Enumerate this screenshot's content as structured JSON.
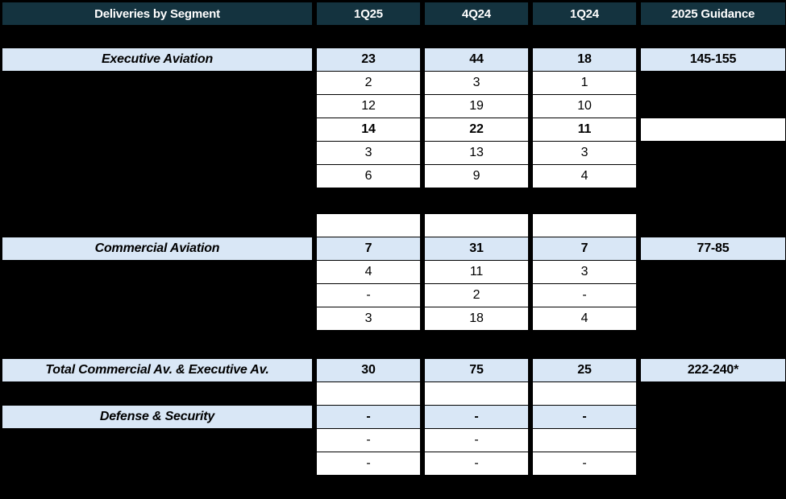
{
  "colors": {
    "page-bg": "#000000",
    "header-bg": "#14333f",
    "header-text": "#ffffff",
    "segment-row-bg": "#d9e7f6",
    "cell-bg": "#ffffff",
    "text": "#000000"
  },
  "chart_data": {
    "type": "table",
    "title": "Deliveries by Segment",
    "columns": [
      "Deliveries by Segment",
      "1Q25",
      "4Q24",
      "1Q24",
      "2025 Guidance"
    ],
    "rows": [
      [
        "Executive Aviation",
        "23",
        "44",
        "18",
        "145-155"
      ],
      [
        "",
        "2",
        "3",
        "1",
        ""
      ],
      [
        "",
        "12",
        "19",
        "10",
        ""
      ],
      [
        "",
        "14",
        "22",
        "11",
        ""
      ],
      [
        "",
        "3",
        "13",
        "3",
        ""
      ],
      [
        "",
        "6",
        "9",
        "4",
        ""
      ],
      [
        "",
        "",
        "",
        "",
        ""
      ],
      [
        "Commercial Aviation",
        "7",
        "31",
        "7",
        "77-85"
      ],
      [
        "",
        "4",
        "11",
        "3",
        ""
      ],
      [
        "",
        "-",
        "2",
        "-",
        ""
      ],
      [
        "",
        "3",
        "18",
        "4",
        ""
      ],
      [
        "Total Commercial Av. & Executive Av.",
        "30",
        "75",
        "25",
        "222-240*"
      ],
      [
        "",
        "",
        "",
        "",
        ""
      ],
      [
        "Defense & Security",
        "-",
        "-",
        "-",
        ""
      ],
      [
        "",
        "-",
        "-",
        "",
        ""
      ],
      [
        "",
        "-",
        "-",
        "-",
        ""
      ]
    ]
  }
}
